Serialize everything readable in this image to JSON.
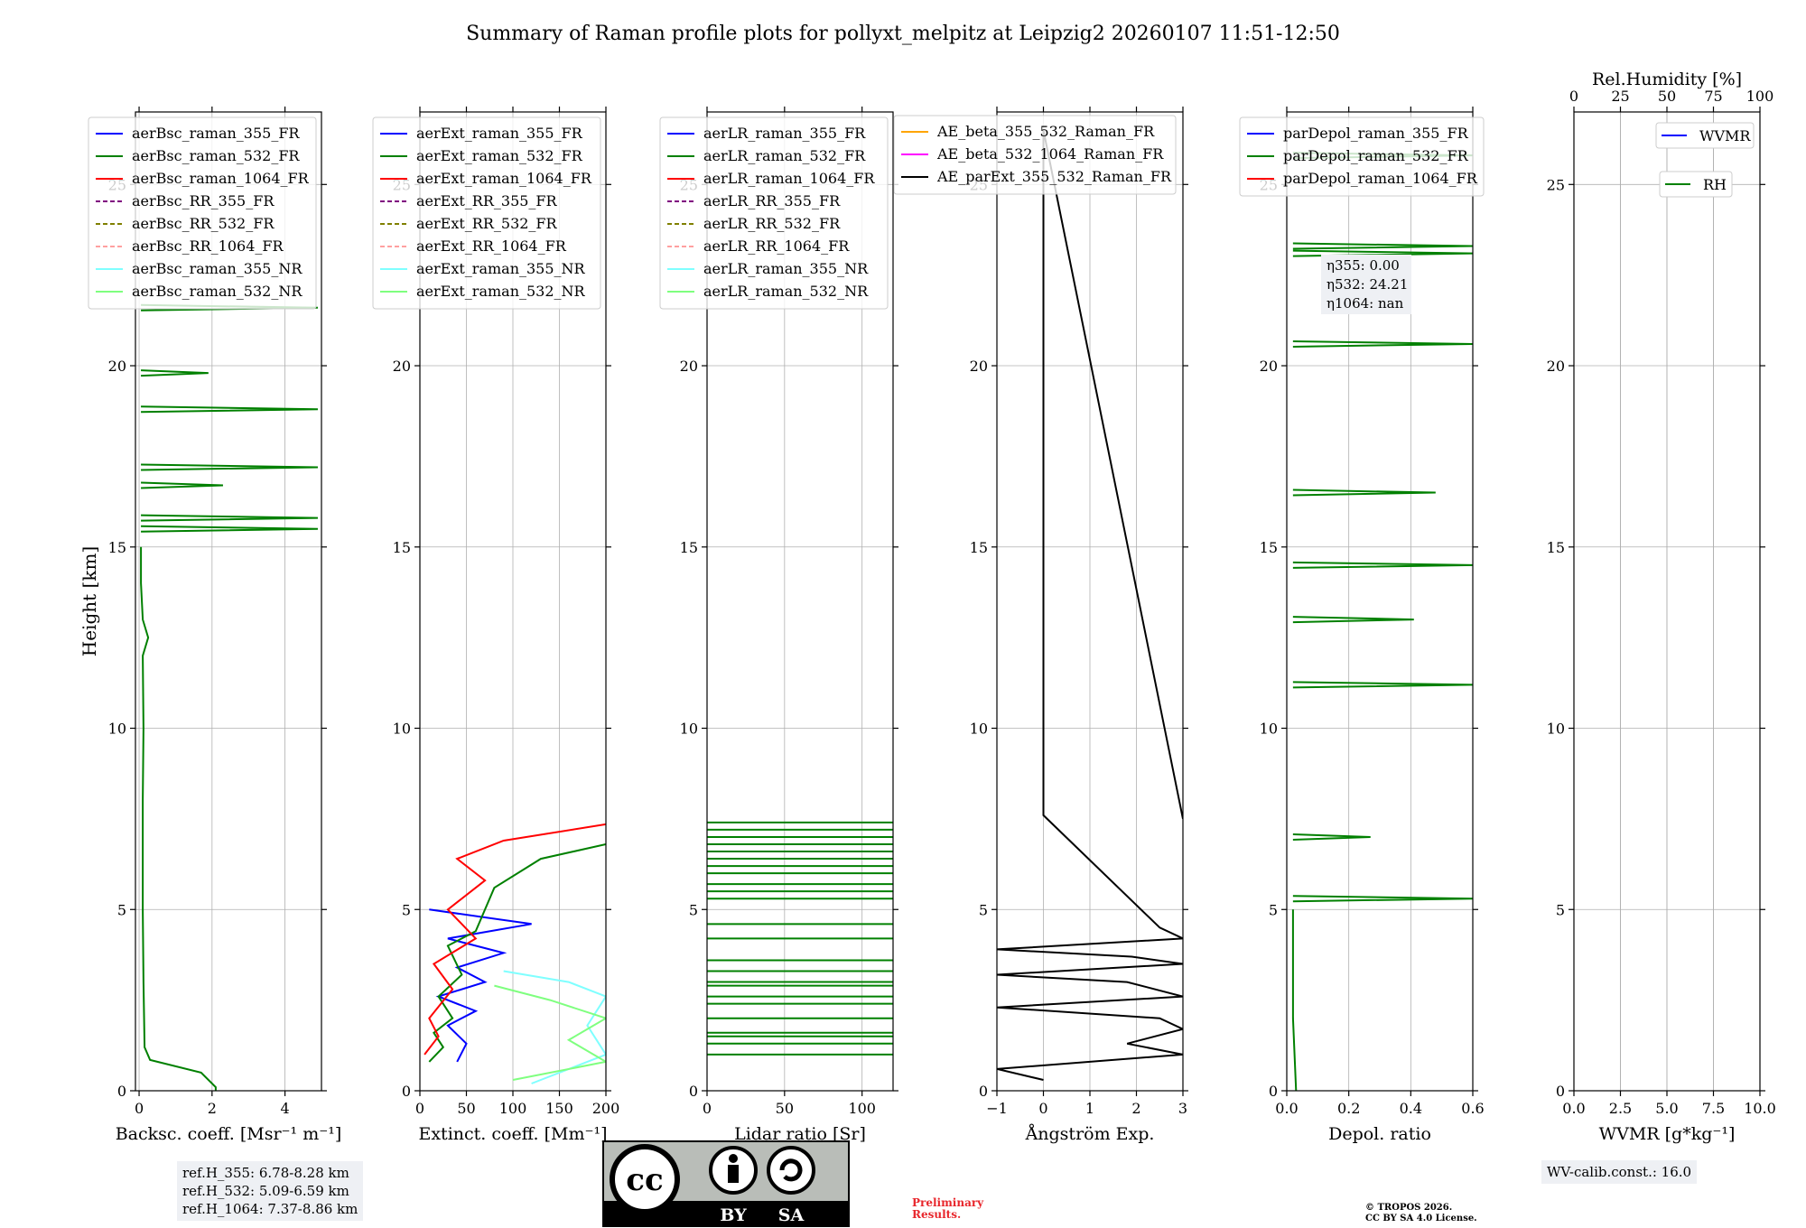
{
  "title": "Summary of Raman profile plots for pollyxt_melpitz at Leipzig2 20260107 11:51-12:50",
  "chart_data": [
    {
      "type": "line",
      "id": "bsc",
      "xlabel": "Backsc. coeff. [Msr⁻¹ m⁻¹]",
      "ylabel": "Height [km]",
      "xlim": [
        -0.1,
        5
      ],
      "ylim": [
        0,
        27
      ],
      "xticks": [
        0,
        2,
        4
      ],
      "yticks": [
        0,
        5,
        10,
        15,
        20,
        25
      ],
      "grid": true,
      "legend_position": "top-right",
      "series": [
        {
          "name": "aerBsc_raman_355_FR",
          "color": "#0000ff",
          "style": "solid",
          "profile": []
        },
        {
          "name": "aerBsc_raman_532_FR",
          "color": "#008000",
          "style": "solid",
          "profile": [
            [
              2.1,
              0
            ],
            [
              2.1,
              0.1
            ],
            [
              1.7,
              0.5
            ],
            [
              0.3,
              0.85
            ],
            [
              0.15,
              1.2
            ],
            [
              0.12,
              3
            ],
            [
              0.1,
              5
            ],
            [
              0.1,
              8
            ],
            [
              0.12,
              10
            ],
            [
              0.1,
              12
            ],
            [
              0.25,
              12.5
            ],
            [
              0.1,
              13
            ],
            [
              0.05,
              14
            ],
            [
              0.05,
              15
            ]
          ],
          "spikes": [
            [
              15.5,
              4.9
            ],
            [
              15.8,
              4.9
            ],
            [
              16.7,
              2.3
            ],
            [
              17.2,
              4.9
            ],
            [
              18.8,
              4.9
            ],
            [
              19.8,
              1.9
            ],
            [
              21.6,
              4.9
            ]
          ]
        },
        {
          "name": "aerBsc_raman_1064_FR",
          "color": "#ff0000",
          "style": "solid",
          "profile": []
        },
        {
          "name": "aerBsc_RR_355_FR",
          "color": "#800080",
          "style": "dashed",
          "profile": []
        },
        {
          "name": "aerBsc_RR_532_FR",
          "color": "#808000",
          "style": "dashed",
          "profile": []
        },
        {
          "name": "aerBsc_RR_1064_FR",
          "color": "#ffa0a0",
          "style": "dashed",
          "profile": []
        },
        {
          "name": "aerBsc_raman_355_NR",
          "color": "#7fffff",
          "style": "solid",
          "profile": []
        },
        {
          "name": "aerBsc_raman_532_NR",
          "color": "#7fff7f",
          "style": "solid",
          "profile": []
        }
      ]
    },
    {
      "type": "line",
      "id": "ext",
      "xlabel": "Extinct. coeff. [Mm⁻¹]",
      "ylabel": "",
      "xlim": [
        0,
        200
      ],
      "ylim": [
        0,
        27
      ],
      "xticks": [
        0,
        50,
        100,
        150,
        200
      ],
      "yticks": [
        0,
        5,
        10,
        15,
        20,
        25
      ],
      "grid": true,
      "legend_position": "top-right",
      "series": [
        {
          "name": "aerExt_raman_355_FR",
          "color": "#0000ff",
          "style": "solid",
          "profile": [
            [
              40,
              0.8
            ],
            [
              50,
              1.3
            ],
            [
              30,
              1.8
            ],
            [
              60,
              2.2
            ],
            [
              20,
              2.6
            ],
            [
              70,
              3.0
            ],
            [
              40,
              3.4
            ],
            [
              90,
              3.8
            ],
            [
              30,
              4.2
            ],
            [
              120,
              4.6
            ],
            [
              10,
              5.0
            ]
          ]
        },
        {
          "name": "aerExt_raman_532_FR",
          "color": "#008000",
          "style": "solid",
          "profile": [
            [
              10,
              0.8
            ],
            [
              25,
              1.2
            ],
            [
              15,
              1.6
            ],
            [
              35,
              2.0
            ],
            [
              20,
              2.6
            ],
            [
              45,
              3.2
            ],
            [
              30,
              4.0
            ],
            [
              60,
              4.4
            ],
            [
              80,
              5.6
            ],
            [
              130,
              6.4
            ],
            [
              200,
              6.8
            ]
          ]
        },
        {
          "name": "aerExt_raman_1064_FR",
          "color": "#ff0000",
          "style": "solid",
          "profile": [
            [
              5,
              1.0
            ],
            [
              20,
              1.5
            ],
            [
              10,
              2.0
            ],
            [
              35,
              2.8
            ],
            [
              15,
              3.5
            ],
            [
              60,
              4.2
            ],
            [
              30,
              5.0
            ],
            [
              70,
              5.8
            ],
            [
              40,
              6.4
            ],
            [
              90,
              6.9
            ],
            [
              200,
              7.35
            ]
          ]
        },
        {
          "name": "aerExt_RR_355_FR",
          "color": "#800080",
          "style": "dashed",
          "profile": []
        },
        {
          "name": "aerExt_RR_532_FR",
          "color": "#808000",
          "style": "dashed",
          "profile": []
        },
        {
          "name": "aerExt_RR_1064_FR",
          "color": "#ffa0a0",
          "style": "dashed",
          "profile": []
        },
        {
          "name": "aerExt_raman_355_NR",
          "color": "#7fffff",
          "style": "solid",
          "profile": [
            [
              120,
              0.2
            ],
            [
              200,
              1.0
            ],
            [
              180,
              1.8
            ],
            [
              200,
              2.6
            ],
            [
              160,
              3.0
            ],
            [
              90,
              3.3
            ]
          ]
        },
        {
          "name": "aerExt_raman_532_NR",
          "color": "#7fff7f",
          "style": "solid",
          "profile": [
            [
              100,
              0.3
            ],
            [
              200,
              0.8
            ],
            [
              160,
              1.4
            ],
            [
              200,
              2.0
            ],
            [
              140,
              2.5
            ],
            [
              80,
              2.9
            ]
          ]
        }
      ]
    },
    {
      "type": "line",
      "id": "lr",
      "xlabel": "Lidar ratio [Sr]",
      "ylabel": "",
      "xlim": [
        0,
        120
      ],
      "ylim": [
        0,
        27
      ],
      "xticks": [
        0,
        50,
        100
      ],
      "yticks": [
        0,
        5,
        10,
        15,
        20,
        25
      ],
      "grid": true,
      "legend_position": "top-right",
      "series": [
        {
          "name": "aerLR_raman_355_FR",
          "color": "#0000ff",
          "style": "solid",
          "profile": []
        },
        {
          "name": "aerLR_raman_532_FR",
          "color": "#008000",
          "style": "solid",
          "hlines": [
            1.0,
            1.3,
            1.5,
            1.6,
            2.0,
            2.4,
            2.6,
            2.9,
            3.0,
            3.3,
            3.6,
            4.2,
            4.6,
            5.3,
            5.5,
            5.7,
            6.0,
            6.2,
            6.4,
            6.6,
            6.8,
            7.0,
            7.2,
            7.4
          ]
        },
        {
          "name": "aerLR_raman_1064_FR",
          "color": "#ff0000",
          "style": "solid",
          "profile": []
        },
        {
          "name": "aerLR_RR_355_FR",
          "color": "#800080",
          "style": "dashed",
          "profile": []
        },
        {
          "name": "aerLR_RR_532_FR",
          "color": "#808000",
          "style": "dashed",
          "profile": []
        },
        {
          "name": "aerLR_RR_1064_FR",
          "color": "#ffa0a0",
          "style": "dashed",
          "profile": []
        },
        {
          "name": "aerLR_raman_355_NR",
          "color": "#7fffff",
          "style": "solid",
          "profile": []
        },
        {
          "name": "aerLR_raman_532_NR",
          "color": "#7fff7f",
          "style": "solid",
          "profile": []
        }
      ]
    },
    {
      "type": "line",
      "id": "ae",
      "xlabel": "Ångström Exp.",
      "ylabel": "",
      "xlim": [
        -1,
        3
      ],
      "ylim": [
        0,
        27
      ],
      "xticks": [
        -1,
        0,
        1,
        2,
        3
      ],
      "yticks": [
        0,
        5,
        10,
        15,
        20,
        25
      ],
      "grid": true,
      "legend_position": "top-left",
      "series": [
        {
          "name": "AE_beta_355_532_Raman_FR",
          "color": "#ffa500",
          "style": "solid",
          "profile": []
        },
        {
          "name": "AE_beta_532_1064_Raman_FR",
          "color": "#ff00ff",
          "style": "solid",
          "profile": []
        },
        {
          "name": "AE_parExt_355_532_Raman_FR",
          "color": "#000000",
          "style": "solid",
          "profile": [
            [
              0,
              0.3
            ],
            [
              -1,
              0.6
            ],
            [
              3,
              1.0
            ],
            [
              1.8,
              1.3
            ],
            [
              3,
              1.7
            ],
            [
              2.5,
              2.0
            ],
            [
              -1,
              2.3
            ],
            [
              3,
              2.6
            ],
            [
              1.8,
              3.0
            ],
            [
              -1,
              3.2
            ],
            [
              3,
              3.5
            ],
            [
              1.9,
              3.7
            ],
            [
              -1,
              3.9
            ],
            [
              3,
              4.2
            ],
            [
              2.5,
              4.5
            ],
            [
              0,
              7.6
            ],
            [
              0,
              26.5
            ],
            [
              3,
              7.5
            ]
          ]
        }
      ]
    },
    {
      "type": "line",
      "id": "depol",
      "xlabel": "Depol. ratio",
      "ylabel": "",
      "xlim": [
        0,
        0.6
      ],
      "ylim": [
        0,
        27
      ],
      "xticks": [
        0.0,
        0.2,
        0.4,
        0.6
      ],
      "yticks": [
        0,
        5,
        10,
        15,
        20,
        25
      ],
      "grid": true,
      "legend_position": "top-right",
      "series": [
        {
          "name": "parDepol_raman_355_FR",
          "color": "#0000ff",
          "style": "solid",
          "profile": []
        },
        {
          "name": "parDepol_raman_532_FR",
          "color": "#008000",
          "style": "solid",
          "profile": [
            [
              0.03,
              0
            ],
            [
              0.02,
              2
            ],
            [
              0.02,
              5
            ]
          ],
          "spikes": [
            [
              5.3,
              0.6
            ],
            [
              7.0,
              0.27
            ],
            [
              11.2,
              0.6
            ],
            [
              13.0,
              0.41
            ],
            [
              14.5,
              0.6
            ],
            [
              16.5,
              0.48
            ],
            [
              20.6,
              0.6
            ],
            [
              23.1,
              0.6
            ],
            [
              23.3,
              0.6
            ],
            [
              25.8,
              0.6
            ]
          ]
        },
        {
          "name": "parDepol_raman_1064_FR",
          "color": "#ff0000",
          "style": "solid",
          "profile": []
        }
      ],
      "annotations": [
        "η355: 0.00",
        "η532: 24.21",
        "η1064: nan"
      ]
    },
    {
      "type": "line",
      "id": "wv",
      "xlabel": "WVMR [g*kg⁻¹]",
      "x2label": "Rel.Humidity [%]",
      "ylabel": "",
      "xlim": [
        0,
        10
      ],
      "x2lim": [
        0,
        100
      ],
      "ylim": [
        0,
        27
      ],
      "xticks": [
        0.0,
        2.5,
        5.0,
        7.5,
        10.0
      ],
      "x2ticks": [
        0,
        25,
        50,
        75,
        100
      ],
      "yticks": [
        0,
        5,
        10,
        15,
        20,
        25
      ],
      "grid": true,
      "legend_position": "top-right",
      "series": [
        {
          "name": "WVMR",
          "color": "#0000ff",
          "style": "solid",
          "profile": []
        },
        {
          "name": "RH",
          "color": "#008000",
          "style": "solid",
          "profile": []
        }
      ]
    }
  ],
  "ref_heights": [
    "ref.H_355: 6.78-8.28 km",
    "ref.H_532: 5.09-6.59 km",
    "ref.H_1064: 7.37-8.86 km"
  ],
  "wv_calib": "WV-calib.const.: 16.0",
  "license_badge": {
    "top": "cc",
    "by": "BY",
    "sa": "SA"
  },
  "preliminary": [
    "Preliminary",
    "Results."
  ],
  "copyright": [
    "© TROPOS 2026.",
    "CC BY SA 4.0 License."
  ]
}
